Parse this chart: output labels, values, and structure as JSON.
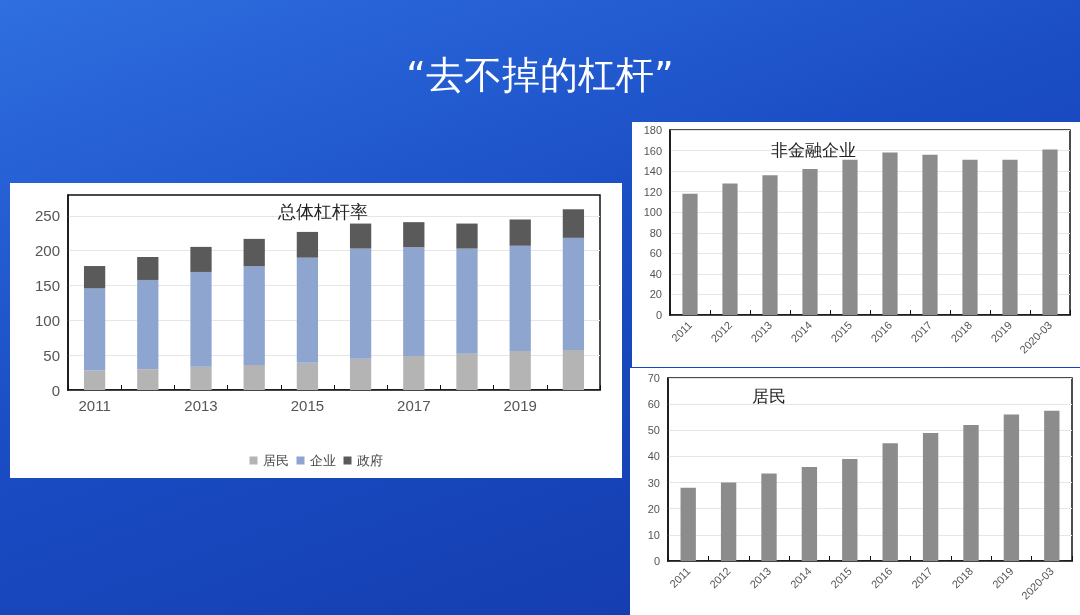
{
  "chart_data": [
    {
      "type": "bar",
      "title": "总体杠杆率",
      "annotations": [
        "“去不掉的杠杆”"
      ],
      "categories": [
        "2011",
        null,
        "2013",
        null,
        "2015",
        null,
        "2017",
        null,
        "2019",
        null
      ],
      "stacked": true,
      "series": [
        {
          "name": "居民",
          "color": "#b4b4b4",
          "values": [
            28,
            30,
            33.5,
            36,
            39,
            45,
            49,
            52,
            56,
            57.5
          ]
        },
        {
          "name": "企业",
          "color": "#8ea5d0",
          "values": [
            118,
            128,
            136,
            142,
            151,
            158,
            156,
            151,
            151,
            161
          ]
        },
        {
          "name": "政府",
          "color": "#5a5a5a",
          "values": [
            32,
            33,
            36,
            39,
            37,
            36,
            36,
            36,
            38,
            41
          ]
        }
      ],
      "ylim": [
        0,
        280
      ],
      "yticks": [
        0,
        50,
        100,
        150,
        200,
        250
      ],
      "grid": "y",
      "legend": "bottom"
    },
    {
      "type": "bar",
      "title": "非金融企业",
      "categories": [
        "2011",
        "2012",
        "2013",
        "2014",
        "2015",
        "2016",
        "2017",
        "2018",
        "2019",
        "2020-03"
      ],
      "values": [
        118,
        128,
        136,
        142,
        151,
        158,
        156,
        151,
        151,
        161
      ],
      "color": "#8c8c8c",
      "ylim": [
        0,
        180
      ],
      "yticks": [
        0,
        20,
        40,
        60,
        80,
        100,
        120,
        140,
        160,
        180
      ],
      "grid": "y"
    },
    {
      "type": "bar",
      "title": "居民",
      "categories": [
        "2011",
        "2012",
        "2013",
        "2014",
        "2015",
        "2016",
        "2017",
        "2018",
        "2019",
        "2020-03"
      ],
      "values": [
        28,
        30,
        33.5,
        36,
        39,
        45,
        49,
        52,
        56,
        57.5
      ],
      "color": "#8c8c8c",
      "ylim": [
        0,
        70
      ],
      "yticks": [
        0,
        10,
        20,
        30,
        40,
        50,
        60,
        70
      ],
      "grid": "y"
    }
  ]
}
